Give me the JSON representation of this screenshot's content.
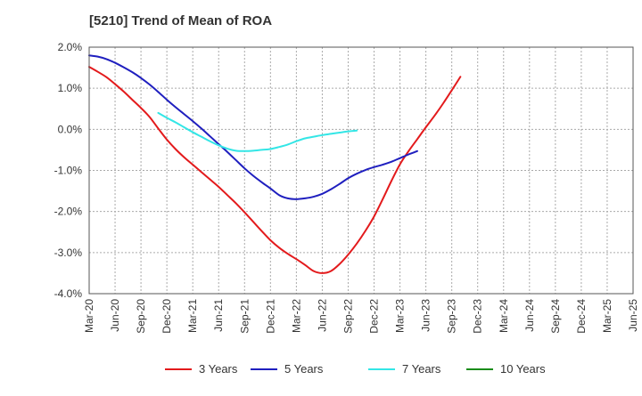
{
  "chart_data": {
    "type": "line",
    "title": "[5210]  Trend of Mean of ROA",
    "xlabel": "",
    "ylabel": "",
    "ylim": [
      -4.0,
      2.0
    ],
    "yticks": [
      2.0,
      1.0,
      0.0,
      -1.0,
      -2.0,
      -3.0,
      -4.0
    ],
    "ytick_labels": [
      "2.0%",
      "1.0%",
      "0.0%",
      "-1.0%",
      "-2.0%",
      "-3.0%",
      "-4.0%"
    ],
    "x_tick_labels": [
      "Mar-20",
      "Jun-20",
      "Sep-20",
      "Dec-20",
      "Mar-21",
      "Jun-21",
      "Sep-21",
      "Dec-21",
      "Mar-22",
      "Jun-22",
      "Sep-22",
      "Dec-22",
      "Mar-23",
      "Jun-23",
      "Sep-23",
      "Dec-23",
      "Mar-24",
      "Jun-24",
      "Sep-24",
      "Dec-24",
      "Mar-25",
      "Jun-25"
    ],
    "grid": true,
    "legend_position": "bottom",
    "series": [
      {
        "name": "3 Years",
        "color": "#e31a1c",
        "start_index": 0,
        "values": [
          1.52,
          1.4,
          1.27,
          1.1,
          0.92,
          0.72,
          0.52,
          0.3,
          0.02,
          -0.25,
          -0.48,
          -0.68,
          -0.86,
          -1.04,
          -1.22,
          -1.4,
          -1.6,
          -1.8,
          -2.02,
          -2.25,
          -2.48,
          -2.7,
          -2.88,
          -3.03,
          -3.16,
          -3.3,
          -3.45,
          -3.5,
          -3.45,
          -3.28,
          -3.05,
          -2.78,
          -2.47,
          -2.12,
          -1.7,
          -1.26,
          -0.85,
          -0.53,
          -0.24,
          0.05,
          0.33,
          0.63,
          0.95,
          1.28
        ]
      },
      {
        "name": "5 Years",
        "color": "#1f1fbf",
        "start_index": 0,
        "values": [
          1.8,
          1.77,
          1.71,
          1.62,
          1.51,
          1.39,
          1.25,
          1.09,
          0.91,
          0.72,
          0.54,
          0.37,
          0.2,
          0.02,
          -0.17,
          -0.36,
          -0.55,
          -0.75,
          -0.95,
          -1.13,
          -1.29,
          -1.44,
          -1.6,
          -1.68,
          -1.7,
          -1.68,
          -1.64,
          -1.57,
          -1.46,
          -1.33,
          -1.19,
          -1.08,
          -0.99,
          -0.92,
          -0.86,
          -0.79,
          -0.7,
          -0.61,
          -0.53
        ]
      },
      {
        "name": "7 Years",
        "color": "#33e6e6",
        "start_index": 8,
        "values": [
          0.4,
          0.28,
          0.17,
          0.05,
          -0.07,
          -0.18,
          -0.29,
          -0.39,
          -0.47,
          -0.52,
          -0.53,
          -0.52,
          -0.5,
          -0.48,
          -0.43,
          -0.37,
          -0.29,
          -0.22,
          -0.18,
          -0.14,
          -0.11,
          -0.08,
          -0.05,
          -0.03
        ]
      },
      {
        "name": "10 Years",
        "color": "#1a8c1a",
        "start_index": 0,
        "values": []
      }
    ]
  }
}
